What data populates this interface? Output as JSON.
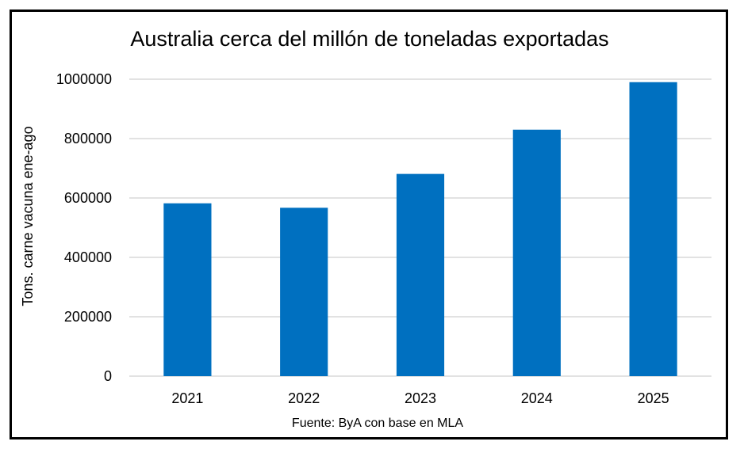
{
  "chart_data": {
    "type": "bar",
    "title": "Australia cerca del millón de toneladas exportadas",
    "xlabel": "",
    "ylabel": "Tons. carne vacuna ene-ago",
    "categories": [
      "2021",
      "2022",
      "2023",
      "2024",
      "2025"
    ],
    "values": [
      582000,
      567000,
      681000,
      830000,
      990000
    ],
    "ylim": [
      0,
      1000000
    ],
    "yticks": [
      "0",
      "200000",
      "400000",
      "600000",
      "800000",
      "1000000"
    ],
    "grid": true,
    "legend": "none",
    "bar_color": "#0070C0",
    "grid_color": "#D9D9D9",
    "note": "Fuente: ByA con base en MLA"
  }
}
